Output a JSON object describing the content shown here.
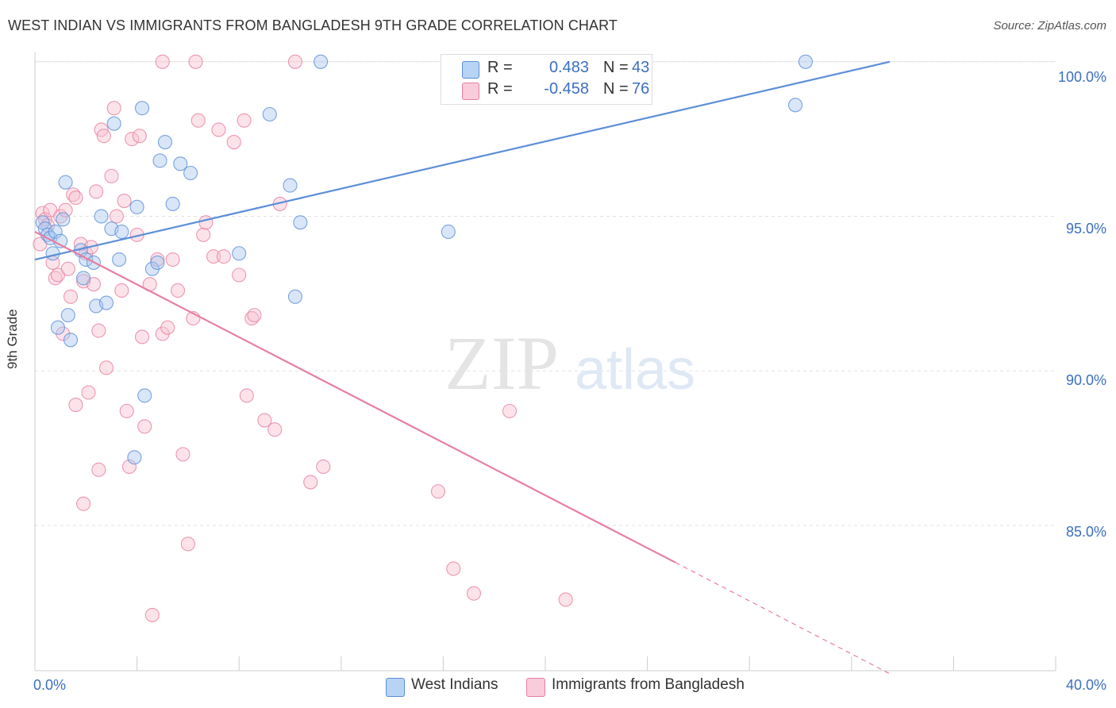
{
  "title": "WEST INDIAN VS IMMIGRANTS FROM BANGLADESH 9TH GRADE CORRELATION CHART",
  "source": "Source: ZipAtlas.com",
  "watermark": {
    "zip": "ZIP",
    "atlas": "atlas"
  },
  "legend": {
    "r_label": "R =",
    "n_label": "N =",
    "series": [
      {
        "name": "West Indians",
        "r": "0.483",
        "n": "43",
        "fill": "#a8c8f0",
        "stroke": "#5b8fd8"
      },
      {
        "name": "Immigrants from Bangladesh",
        "r": "-0.458",
        "n": "76",
        "fill": "#f8c0d0",
        "stroke": "#e87ea0"
      }
    ]
  },
  "chart_data": {
    "type": "scatter",
    "title": "WEST INDIAN VS IMMIGRANTS FROM BANGLADESH 9TH GRADE CORRELATION CHART",
    "xlabel": "",
    "ylabel": "9th Grade",
    "xlim": [
      0,
      40
    ],
    "ylim": [
      80.3,
      100.2
    ],
    "x_tick_labels": [
      "0.0%",
      "40.0%"
    ],
    "y_ticks": [
      85,
      90,
      95,
      100
    ],
    "y_tick_labels": [
      "85.0%",
      "90.0%",
      "95.0%",
      "100.0%"
    ],
    "series": [
      {
        "name": "West Indians",
        "color": "#5b8fd8",
        "fill": "#a8c8f0",
        "points": [
          [
            0.3,
            94.8
          ],
          [
            0.4,
            94.6
          ],
          [
            0.5,
            94.4
          ],
          [
            0.6,
            94.3
          ],
          [
            0.7,
            93.8
          ],
          [
            0.8,
            94.5
          ],
          [
            0.9,
            91.4
          ],
          [
            1.0,
            94.2
          ],
          [
            1.1,
            94.9
          ],
          [
            1.2,
            96.1
          ],
          [
            1.3,
            91.8
          ],
          [
            1.4,
            91.0
          ],
          [
            1.8,
            93.9
          ],
          [
            1.9,
            93.0
          ],
          [
            2.0,
            93.6
          ],
          [
            2.3,
            93.5
          ],
          [
            2.4,
            92.1
          ],
          [
            2.6,
            95.0
          ],
          [
            2.8,
            92.2
          ],
          [
            3.0,
            94.6
          ],
          [
            3.1,
            98.0
          ],
          [
            3.3,
            93.6
          ],
          [
            3.4,
            94.5
          ],
          [
            3.9,
            87.2
          ],
          [
            4.0,
            95.3
          ],
          [
            4.2,
            98.5
          ],
          [
            4.3,
            89.2
          ],
          [
            4.6,
            93.3
          ],
          [
            4.8,
            93.5
          ],
          [
            4.9,
            96.8
          ],
          [
            5.1,
            97.4
          ],
          [
            5.4,
            95.4
          ],
          [
            5.7,
            96.7
          ],
          [
            6.1,
            96.4
          ],
          [
            8.0,
            93.8
          ],
          [
            9.2,
            98.3
          ],
          [
            10.0,
            96.0
          ],
          [
            10.2,
            92.4
          ],
          [
            10.4,
            94.8
          ],
          [
            11.2,
            100.0
          ],
          [
            16.2,
            94.5
          ],
          [
            29.8,
            98.6
          ],
          [
            30.2,
            100.0
          ]
        ],
        "trend": {
          "x": [
            0,
            33.5
          ],
          "y": [
            93.6,
            100.0
          ],
          "dashed_to": null
        }
      },
      {
        "name": "Immigrants from Bangladesh",
        "color": "#e87ea0",
        "fill": "#f8c0d0",
        "points": [
          [
            0.2,
            94.1
          ],
          [
            0.3,
            95.1
          ],
          [
            0.4,
            94.9
          ],
          [
            0.5,
            94.7
          ],
          [
            0.6,
            95.2
          ],
          [
            0.7,
            93.5
          ],
          [
            0.8,
            93.0
          ],
          [
            0.9,
            93.1
          ],
          [
            1.0,
            95.0
          ],
          [
            1.1,
            91.2
          ],
          [
            1.2,
            95.2
          ],
          [
            1.3,
            93.3
          ],
          [
            1.4,
            92.4
          ],
          [
            1.5,
            95.7
          ],
          [
            1.6,
            95.6
          ],
          [
            1.8,
            94.1
          ],
          [
            1.9,
            92.9
          ],
          [
            2.0,
            93.8
          ],
          [
            2.1,
            89.3
          ],
          [
            2.2,
            94.0
          ],
          [
            2.3,
            92.8
          ],
          [
            2.4,
            95.8
          ],
          [
            2.5,
            91.3
          ],
          [
            2.6,
            97.8
          ],
          [
            2.7,
            97.6
          ],
          [
            2.8,
            90.1
          ],
          [
            3.0,
            96.3
          ],
          [
            3.1,
            98.5
          ],
          [
            3.2,
            95.0
          ],
          [
            3.4,
            92.6
          ],
          [
            3.5,
            95.5
          ],
          [
            3.6,
            88.7
          ],
          [
            3.7,
            86.9
          ],
          [
            3.8,
            97.5
          ],
          [
            4.0,
            94.4
          ],
          [
            4.1,
            97.6
          ],
          [
            4.2,
            91.1
          ],
          [
            4.3,
            88.2
          ],
          [
            4.5,
            92.8
          ],
          [
            4.6,
            82.1
          ],
          [
            4.8,
            93.6
          ],
          [
            5.0,
            91.2
          ],
          [
            5.2,
            91.4
          ],
          [
            5.4,
            93.6
          ],
          [
            5.6,
            92.6
          ],
          [
            5.8,
            87.3
          ],
          [
            6.0,
            84.4
          ],
          [
            6.3,
            100.0
          ],
          [
            6.4,
            98.1
          ],
          [
            6.6,
            94.4
          ],
          [
            6.7,
            94.8
          ],
          [
            7.0,
            93.7
          ],
          [
            7.2,
            97.8
          ],
          [
            7.4,
            93.7
          ],
          [
            7.8,
            97.4
          ],
          [
            8.0,
            93.1
          ],
          [
            8.2,
            98.1
          ],
          [
            8.3,
            89.2
          ],
          [
            8.5,
            91.7
          ],
          [
            8.6,
            91.8
          ],
          [
            9.0,
            88.4
          ],
          [
            9.4,
            88.1
          ],
          [
            9.6,
            95.4
          ],
          [
            10.2,
            100.0
          ],
          [
            10.8,
            86.4
          ],
          [
            11.3,
            86.9
          ],
          [
            15.8,
            86.1
          ],
          [
            16.4,
            83.6
          ],
          [
            17.2,
            82.8
          ],
          [
            18.6,
            88.7
          ],
          [
            20.8,
            82.6
          ],
          [
            5.0,
            100.0
          ],
          [
            1.6,
            88.9
          ],
          [
            1.9,
            85.7
          ],
          [
            2.5,
            86.8
          ],
          [
            6.2,
            91.7
          ]
        ],
        "trend": {
          "x": [
            0,
            25.1
          ],
          "y": [
            94.5,
            83.8
          ],
          "dashed_to": {
            "x": 33.5,
            "y": 80.2
          }
        }
      }
    ]
  }
}
